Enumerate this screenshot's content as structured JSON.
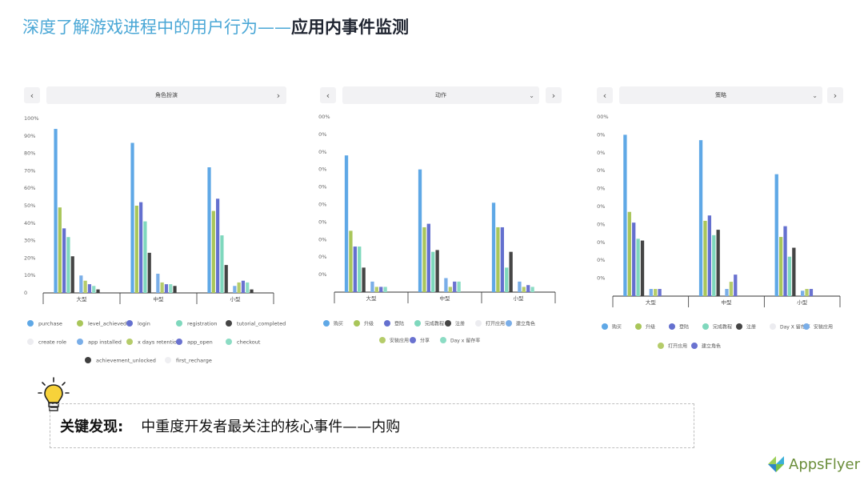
{
  "header": {
    "title_prefix": "深度了解游戏进程中的用户行为——",
    "title_strong": "应用内事件监测"
  },
  "controls": {
    "prev_label": "‹",
    "next_label": "›",
    "panels": [
      {
        "select_label": "角色扮演"
      },
      {
        "select_label": "动作"
      },
      {
        "select_label": "策略"
      }
    ]
  },
  "finding": {
    "label": "关键发现:",
    "text": "中重度开发者最关注的核心事件——内购"
  },
  "logo": {
    "text": "AppsFlyer"
  },
  "chart_data": [
    {
      "type": "bar",
      "yticks": [
        "0",
        "10%",
        "20%",
        "30%",
        "40%",
        "50%",
        "60%",
        "70%",
        "80%",
        "90%",
        "100%"
      ],
      "ylim": [
        0,
        100
      ],
      "categories": [
        "大型",
        "中型",
        "小型"
      ],
      "series": [
        {
          "name": "purchase",
          "color": "#5fa8e6",
          "values": [
            94,
            86,
            72
          ]
        },
        {
          "name": "level_achieved",
          "color": "#a9c65a",
          "values": [
            49,
            50,
            47
          ]
        },
        {
          "name": "login",
          "color": "#6470cf",
          "values": [
            37,
            52,
            54
          ]
        },
        {
          "name": "registration",
          "color": "#7fd8bd",
          "values": [
            32,
            41,
            33
          ]
        },
        {
          "name": "tutorial_completed",
          "color": "#454545",
          "values": [
            21,
            23,
            16
          ]
        },
        {
          "name": "create role",
          "color": "#ececf0",
          "values": [
            0,
            0,
            0
          ]
        },
        {
          "name": "app installed",
          "color": "#7aaee8",
          "values": [
            10,
            11,
            4
          ]
        },
        {
          "name": "x days retention",
          "color": "#b5cc6a",
          "values": [
            7,
            6,
            6
          ]
        },
        {
          "name": "app_open",
          "color": "#6a72d0",
          "values": [
            5,
            5,
            7
          ]
        },
        {
          "name": "checkout",
          "color": "#8cdcc4",
          "values": [
            4,
            5,
            6
          ]
        },
        {
          "name": "achievement_unlocked",
          "color": "#3f3f3f",
          "values": [
            2,
            4,
            2
          ]
        },
        {
          "name": "first_recharge",
          "color": "#efeff2",
          "values": [
            0,
            0,
            0
          ]
        }
      ]
    },
    {
      "type": "bar",
      "yticks": [
        "0",
        "10%",
        "20%",
        "30%",
        "40%",
        "50%",
        "60%",
        "70%",
        "80%",
        "90%",
        "100%"
      ],
      "ylim": [
        0,
        100
      ],
      "categories": [
        "大型",
        "中型",
        "小型"
      ],
      "series": [
        {
          "name": "购买",
          "color": "#5fa8e6",
          "values": [
            78,
            70,
            51
          ]
        },
        {
          "name": "升级",
          "color": "#a9c65a",
          "values": [
            35,
            37,
            37
          ]
        },
        {
          "name": "登陆",
          "color": "#6470cf",
          "values": [
            26,
            39,
            37
          ]
        },
        {
          "name": "完成教程",
          "color": "#7fd8bd",
          "values": [
            26,
            23,
            14
          ]
        },
        {
          "name": "注册",
          "color": "#454545",
          "values": [
            14,
            24,
            23
          ]
        },
        {
          "name": "打开应用",
          "color": "#ececf0",
          "values": [
            0,
            0,
            0
          ]
        },
        {
          "name": "建立角色",
          "color": "#7aaee8",
          "values": [
            6,
            8,
            6
          ]
        },
        {
          "name": "安装应用",
          "color": "#b5cc6a",
          "values": [
            3,
            3,
            3
          ]
        },
        {
          "name": "分享",
          "color": "#6a72d0",
          "values": [
            3,
            6,
            4
          ]
        },
        {
          "name": "Day x 留存率",
          "color": "#8cdcc4",
          "values": [
            3,
            6,
            3
          ]
        }
      ]
    },
    {
      "type": "bar",
      "yticks": [
        "0",
        "10%",
        "20%",
        "30%",
        "40%",
        "50%",
        "60%",
        "70%",
        "80%",
        "90%",
        "100%"
      ],
      "ylim": [
        0,
        100
      ],
      "categories": [
        "大型",
        "中型",
        "小型"
      ],
      "series": [
        {
          "name": "购买",
          "color": "#5fa8e6",
          "values": [
            90,
            87,
            68
          ]
        },
        {
          "name": "升级",
          "color": "#a9c65a",
          "values": [
            47,
            42,
            33
          ]
        },
        {
          "name": "登陆",
          "color": "#6470cf",
          "values": [
            41,
            45,
            39
          ]
        },
        {
          "name": "完成教程",
          "color": "#7fd8bd",
          "values": [
            32,
            34,
            22
          ]
        },
        {
          "name": "注册",
          "color": "#454545",
          "values": [
            31,
            37,
            27
          ]
        },
        {
          "name": "Day X 留存率",
          "color": "#ececf0",
          "values": [
            0,
            0,
            0
          ]
        },
        {
          "name": "安装应用",
          "color": "#7aaee8",
          "values": [
            4,
            4,
            3
          ]
        },
        {
          "name": "打开应用",
          "color": "#b5cc6a",
          "values": [
            4,
            8,
            4
          ]
        },
        {
          "name": "建立角色",
          "color": "#6a72d0",
          "values": [
            4,
            12,
            4
          ]
        }
      ]
    }
  ]
}
